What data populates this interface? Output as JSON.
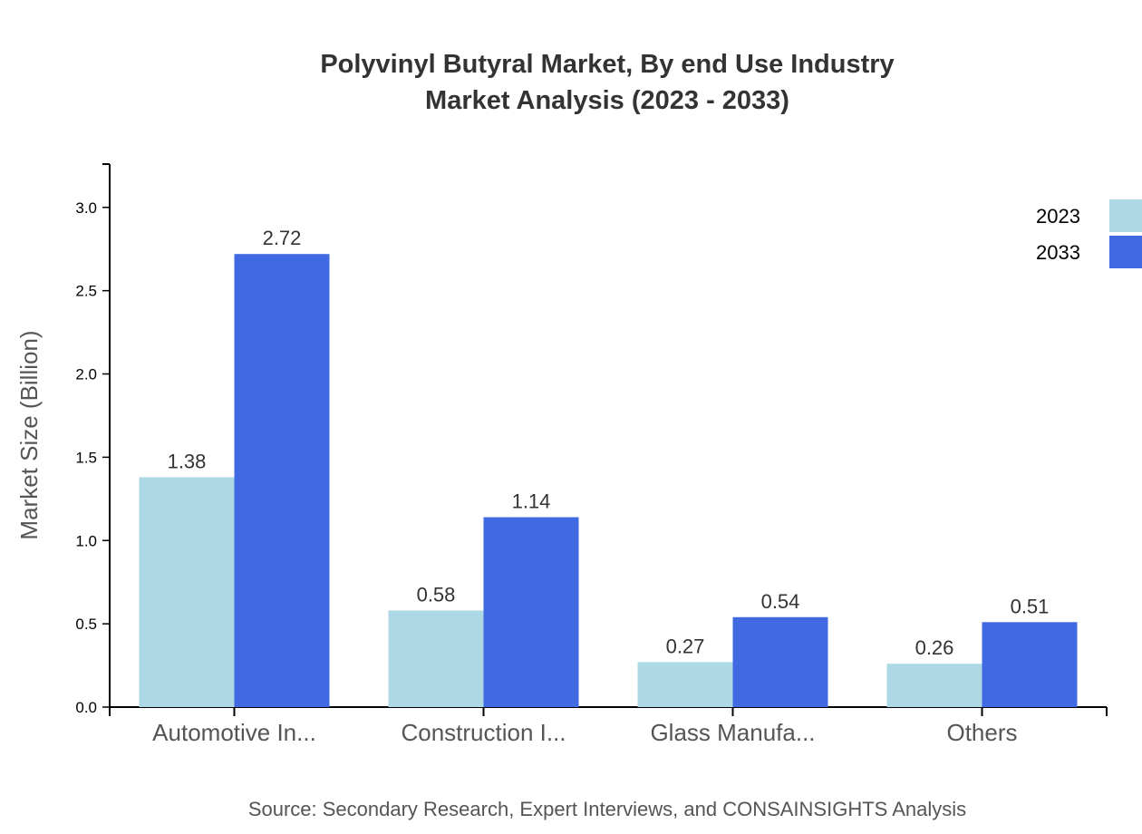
{
  "chart_data": {
    "type": "bar",
    "title": "Polyvinyl Butyral Market, By end Use Industry",
    "subtitle": "Market Analysis (2023 - 2033)",
    "xlabel": "",
    "ylabel": "Market Size (Billion)",
    "ylim": [
      0,
      3.26
    ],
    "yticks": [
      "0.0",
      "0.5",
      "1.0",
      "1.5",
      "2.0",
      "2.5",
      "3.0"
    ],
    "categories": [
      "Automotive In...",
      "Construction I...",
      "Glass Manufa...",
      "Others"
    ],
    "series": [
      {
        "name": "2023",
        "color": "#add8e6",
        "values": [
          1.38,
          0.58,
          0.27,
          0.26
        ]
      },
      {
        "name": "2033",
        "color": "#4169e1",
        "values": [
          2.72,
          1.14,
          0.54,
          0.51
        ]
      }
    ],
    "grid": false,
    "legend": "top-right",
    "source": "Source: Secondary Research, Expert Interviews, and CONSAINSIGHTS Analysis"
  }
}
